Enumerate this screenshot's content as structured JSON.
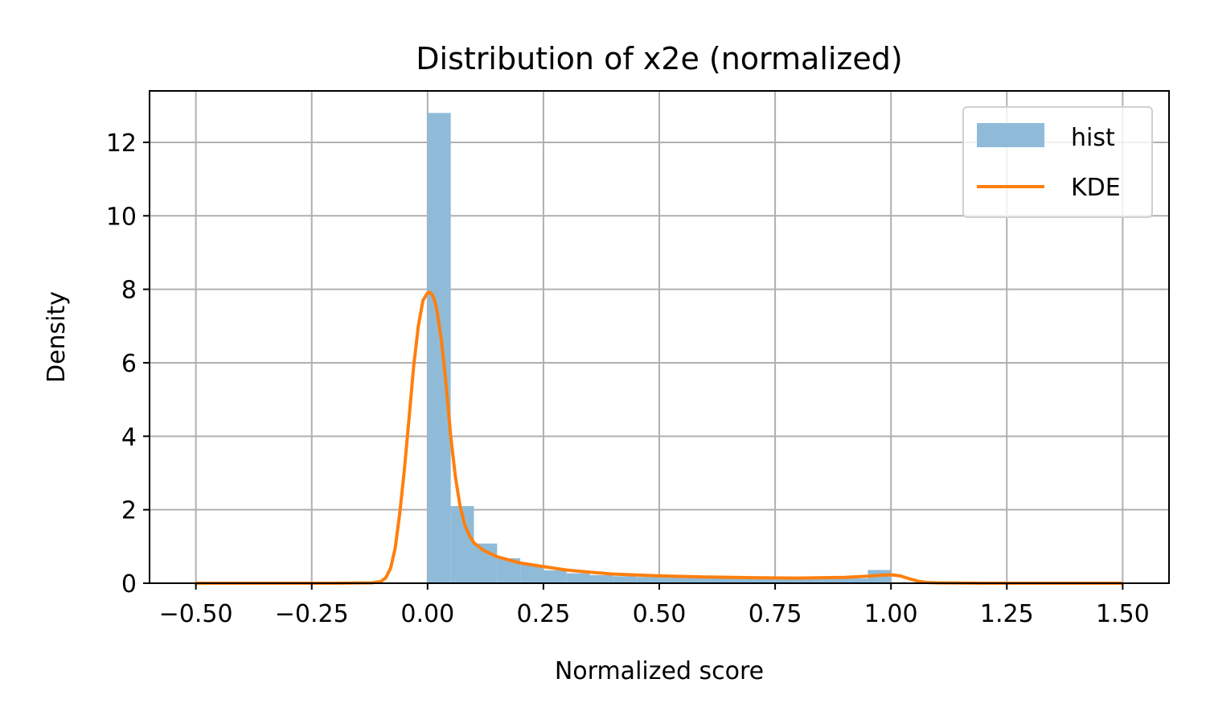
{
  "chart_data": {
    "type": "bar",
    "title": "Distribution of x2e (normalized)",
    "xlabel": "Normalized score",
    "ylabel": "Density",
    "xlim": [
      -0.6,
      1.6
    ],
    "ylim": [
      0,
      13.4
    ],
    "xticks": [
      -0.5,
      -0.25,
      0.0,
      0.25,
      0.5,
      0.75,
      1.0,
      1.25,
      1.5
    ],
    "xtick_labels": [
      "−0.50",
      "−0.25",
      "0.00",
      "0.25",
      "0.50",
      "0.75",
      "1.00",
      "1.25",
      "1.50"
    ],
    "yticks": [
      0,
      2,
      4,
      6,
      8,
      10,
      12
    ],
    "ytick_labels": [
      "0",
      "2",
      "4",
      "6",
      "8",
      "10",
      "12"
    ],
    "grid": true,
    "legend_position": "top-right",
    "colors": {
      "hist": "#8fbbd9",
      "kde": "#ff7f0e"
    },
    "series": [
      {
        "name": "hist",
        "kind": "histogram",
        "bin_edges": [
          0.0,
          0.05,
          0.1,
          0.15,
          0.2,
          0.25,
          0.3,
          0.35,
          0.4,
          0.45,
          0.5,
          0.55,
          0.6,
          0.65,
          0.7,
          0.75,
          0.8,
          0.85,
          0.9,
          0.95,
          1.0
        ],
        "values": [
          12.8,
          2.1,
          1.08,
          0.68,
          0.5,
          0.35,
          0.27,
          0.22,
          0.19,
          0.17,
          0.15,
          0.14,
          0.13,
          0.12,
          0.12,
          0.12,
          0.12,
          0.12,
          0.13,
          0.36
        ]
      },
      {
        "name": "KDE",
        "kind": "line",
        "x": [
          -0.5,
          -0.2,
          -0.12,
          -0.1,
          -0.09,
          -0.08,
          -0.07,
          -0.06,
          -0.05,
          -0.04,
          -0.03,
          -0.02,
          -0.01,
          0.0,
          0.005,
          0.01,
          0.015,
          0.02,
          0.03,
          0.04,
          0.05,
          0.06,
          0.07,
          0.08,
          0.09,
          0.1,
          0.12,
          0.15,
          0.2,
          0.25,
          0.3,
          0.35,
          0.4,
          0.5,
          0.6,
          0.7,
          0.8,
          0.9,
          0.95,
          0.98,
          1.0,
          1.02,
          1.04,
          1.06,
          1.08,
          1.1,
          1.2,
          1.5
        ],
        "y": [
          0.0,
          0.0,
          0.01,
          0.05,
          0.15,
          0.4,
          0.95,
          1.9,
          3.1,
          4.5,
          5.9,
          7.0,
          7.7,
          7.9,
          7.92,
          7.85,
          7.7,
          7.45,
          6.6,
          5.4,
          4.0,
          2.9,
          2.1,
          1.6,
          1.3,
          1.1,
          0.9,
          0.72,
          0.55,
          0.45,
          0.36,
          0.3,
          0.25,
          0.2,
          0.17,
          0.15,
          0.14,
          0.16,
          0.19,
          0.22,
          0.23,
          0.2,
          0.12,
          0.05,
          0.02,
          0.01,
          0.0,
          0.0
        ]
      }
    ]
  }
}
